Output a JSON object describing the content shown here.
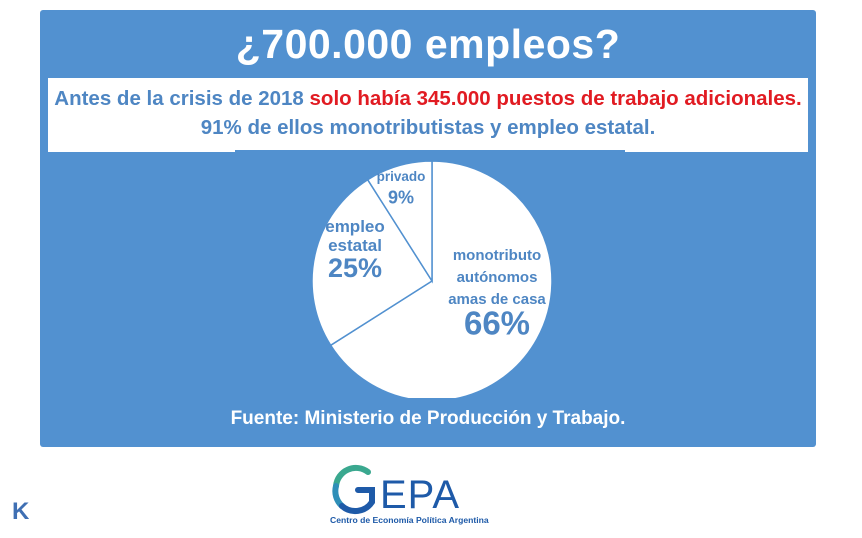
{
  "header": {
    "title": "¿700.000 empleos?"
  },
  "subtitle": {
    "part1": "Antes de la crisis de 2018 ",
    "highlight": "solo había 345.000 puestos de trabajo adicionales.",
    "part2": " 91% de ellos monotributistas y empleo estatal."
  },
  "colors": {
    "panel": "#5291d0",
    "text_blue": "#4e86c3",
    "highlight_red": "#e11b22",
    "logo_teal": "#3aa88f",
    "logo_blue": "#1e5aa8"
  },
  "chart_data": {
    "type": "pie",
    "slices": [
      {
        "label_lines": [
          "monotributo",
          "autónomos",
          "amas de casa"
        ],
        "value_label": "66%",
        "value": 66
      },
      {
        "label_lines": [
          "empleo",
          "estatal"
        ],
        "value_label": "25%",
        "value": 25
      },
      {
        "label_lines": [
          "privado"
        ],
        "value_label": "9%",
        "value": 9
      }
    ]
  },
  "footer": {
    "source": "Fuente: Ministerio de Producción y Trabajo."
  },
  "logo": {
    "name": "GEPA",
    "tagline": "Centro de Economía Política Argentina"
  },
  "corner": {
    "letter": "K"
  }
}
